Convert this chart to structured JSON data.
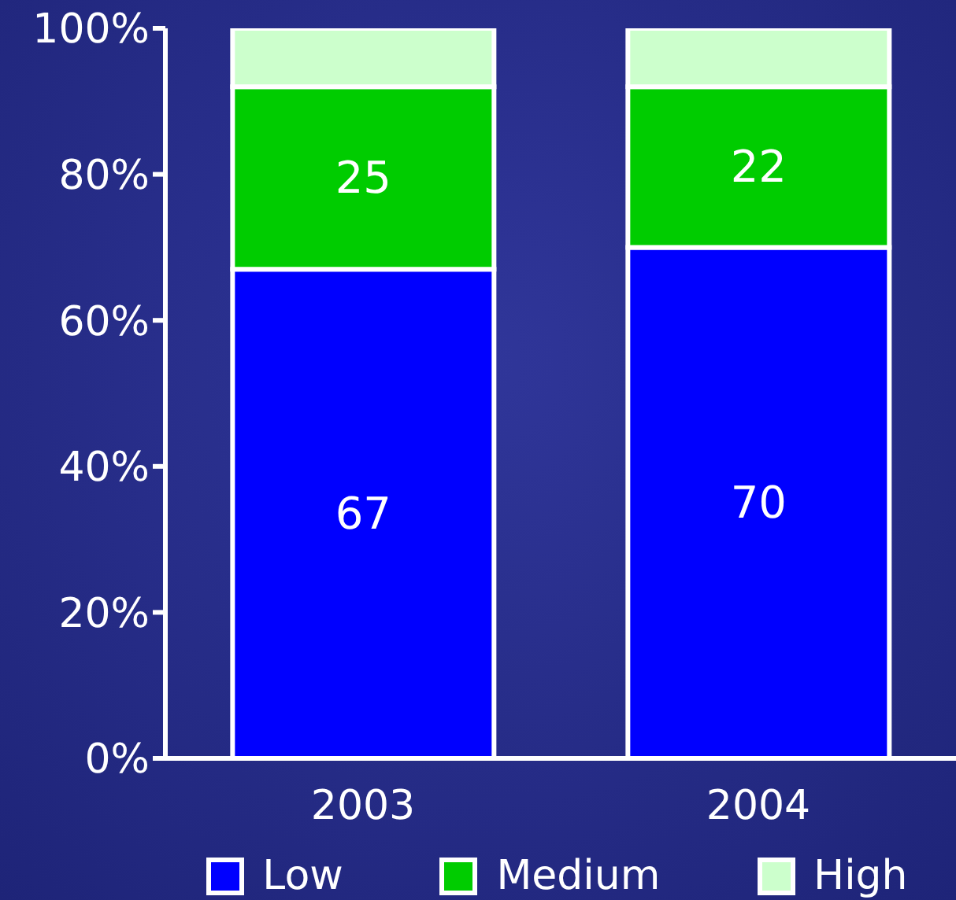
{
  "chart_data": {
    "type": "bar",
    "stacked": true,
    "categories": [
      "2003",
      "2004"
    ],
    "series": [
      {
        "name": "Low",
        "color": "#0000ff",
        "values": [
          67,
          70
        ],
        "value_labels": [
          "67",
          "70"
        ]
      },
      {
        "name": "Medium",
        "color": "#00cc00",
        "values": [
          25,
          22
        ],
        "value_labels": [
          "25",
          "22"
        ]
      },
      {
        "name": "High",
        "color": "#ccffcc",
        "values": [
          8,
          8
        ],
        "value_labels": [
          null,
          null
        ]
      }
    ],
    "ylim": [
      0,
      100
    ],
    "yticks": [
      {
        "value": 0,
        "label": "0%"
      },
      {
        "value": 20,
        "label": "20%"
      },
      {
        "value": 40,
        "label": "40%"
      },
      {
        "value": 60,
        "label": "60%"
      },
      {
        "value": 80,
        "label": "80%"
      },
      {
        "value": 100,
        "label": "100%"
      }
    ],
    "grid": false,
    "legend": "bottom"
  }
}
